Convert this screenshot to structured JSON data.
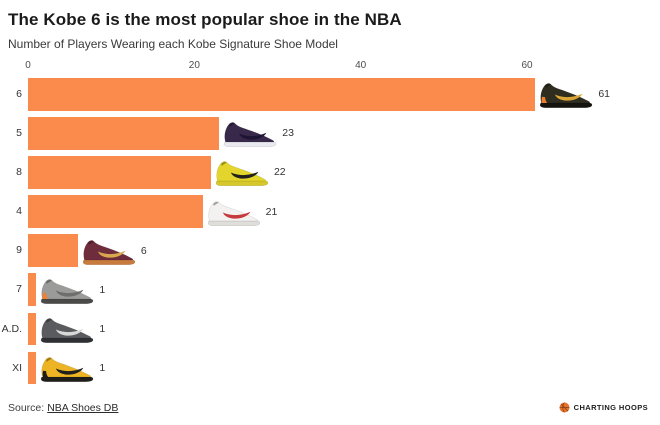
{
  "header": {
    "title": "The Kobe 6 is the most popular shoe in the NBA",
    "subtitle": "Number of Players Wearing each Kobe Signature Shoe Model"
  },
  "chart_data": {
    "type": "bar",
    "orientation": "horizontal",
    "title": "The Kobe 6 is the most popular shoe in the NBA",
    "subtitle": "Number of Players Wearing each Kobe Signature Shoe Model",
    "categories": [
      "6",
      "5",
      "8",
      "4",
      "9",
      "7",
      "A.D.",
      "XI"
    ],
    "values": [
      61,
      23,
      22,
      21,
      6,
      1,
      1,
      1
    ],
    "value_labels": [
      "61",
      "23",
      "22",
      "21",
      "6",
      "1",
      "1",
      "1"
    ],
    "xlim": [
      0,
      60
    ],
    "x_ticks": [
      "0",
      "20",
      "40",
      "60"
    ],
    "grid": false,
    "legend": false,
    "bar_color": "#FB8A4D",
    "shoes": [
      {
        "name": "kobe-6",
        "body": "#2F2D20",
        "sole": "#15140F",
        "swoosh": "#D9A636",
        "accent": "#F07F2D"
      },
      {
        "name": "kobe-5",
        "body": "#38294A",
        "sole": "#E9E9F0",
        "swoosh": "#1E1433",
        "accent": null
      },
      {
        "name": "kobe-8",
        "body": "#E3D52B",
        "sole": "#D6C72A",
        "swoosh": "#23211C",
        "accent": null
      },
      {
        "name": "kobe-4",
        "body": "#F3F2F0",
        "sole": "#E0DEDA",
        "swoosh": "#C6393C",
        "accent": null
      },
      {
        "name": "kobe-9",
        "body": "#6E2C3C",
        "sole": "#C87B3E",
        "swoosh": "#D8A84E",
        "accent": null
      },
      {
        "name": "kobe-7",
        "body": "#9B9B99",
        "sole": "#4A4A48",
        "swoosh": "#6E6E6C",
        "accent": "#F08030"
      },
      {
        "name": "kobe-ad",
        "body": "#595B5E",
        "sole": "#2E3033",
        "swoosh": "#D8D8D8",
        "accent": null
      },
      {
        "name": "kobe-xi",
        "body": "#ECB424",
        "sole": "#1E1D19",
        "swoosh": "#20201C",
        "accent": "#1E1D19"
      }
    ]
  },
  "footer": {
    "source_prefix": "Source:",
    "source_link": "NBA Shoes DB",
    "brand": "CHARTING HOOPS",
    "brand_color": "#E8742C"
  }
}
